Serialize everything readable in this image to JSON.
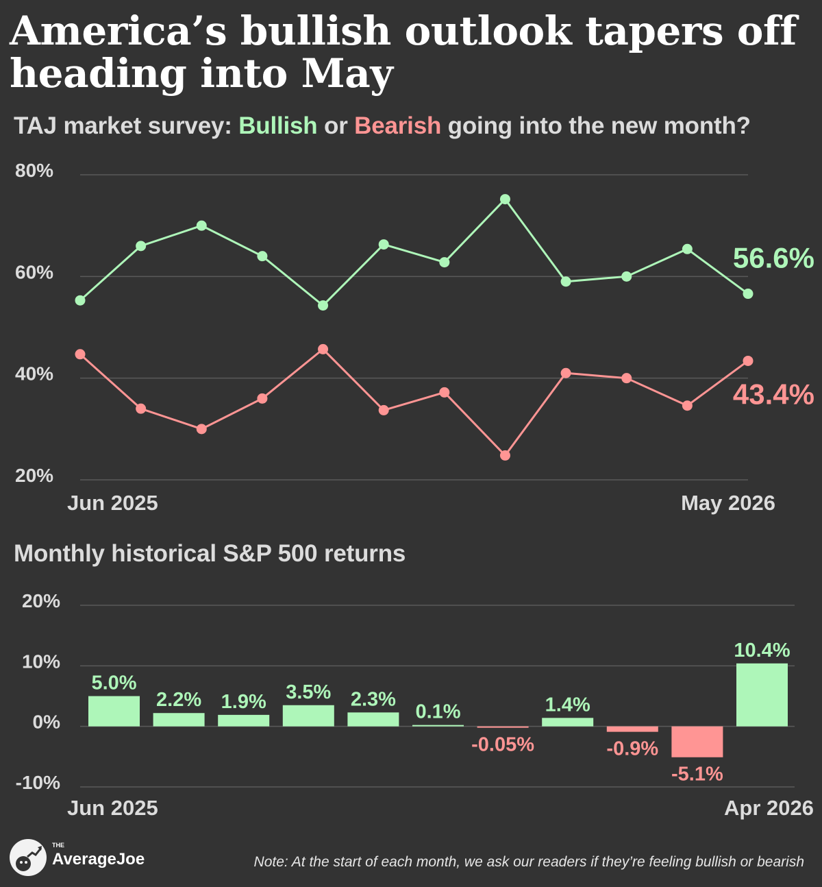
{
  "title": "America’s bullish outlook tapers off heading into May",
  "subtitle": {
    "prefix": "TAJ market survey: ",
    "bullish": "Bullish",
    "middle": " or ",
    "bearish": "Bearish",
    "suffix": " going into the new month?"
  },
  "colors": {
    "background": "#333333",
    "bullish": "#aef6b9",
    "bearish": "#ff9594",
    "gridline": "#5a5a5a",
    "axis_text": "#dcdcdc"
  },
  "section2_title": "Monthly historical S&P 500 returns",
  "footer": {
    "brand_small": "THE",
    "brand_name": "AverageJoe",
    "note": "Note: At the start of each month, we ask our readers if they’re feeling bullish or bearish"
  },
  "chart_data": [
    {
      "type": "line",
      "x_labels": [
        "Jun 2025",
        "May 2026"
      ],
      "y_ticks": [
        "80%",
        "60%",
        "40%",
        "20%"
      ],
      "ylim": [
        20,
        80
      ],
      "grid": true,
      "series": [
        {
          "name": "Bullish",
          "color": "#aef6b9",
          "values": [
            55.3,
            66.0,
            70.0,
            64.0,
            54.3,
            66.3,
            62.8,
            75.2,
            59.0,
            60.0,
            65.4,
            56.6
          ],
          "end_label": "56.6%"
        },
        {
          "name": "Bearish",
          "color": "#ff9594",
          "values": [
            44.7,
            34.0,
            30.0,
            36.0,
            45.7,
            33.7,
            37.2,
            24.8,
            41.0,
            40.0,
            34.6,
            43.4
          ],
          "end_label": "43.4%"
        }
      ]
    },
    {
      "type": "bar",
      "x_labels": [
        "Jun 2025",
        "Apr 2026"
      ],
      "y_ticks": [
        "20%",
        "10%",
        "0%",
        "-10%"
      ],
      "ylim": [
        -10,
        20
      ],
      "grid": true,
      "values": [
        5.0,
        2.2,
        1.9,
        3.5,
        2.3,
        0.1,
        -0.05,
        1.4,
        -0.9,
        -5.1,
        10.4
      ],
      "labels": [
        "5.0%",
        "2.2%",
        "1.9%",
        "3.5%",
        "2.3%",
        "0.1%",
        "-0.05%",
        "1.4%",
        "-0.9%",
        "-5.1%",
        "10.4%"
      ]
    }
  ]
}
